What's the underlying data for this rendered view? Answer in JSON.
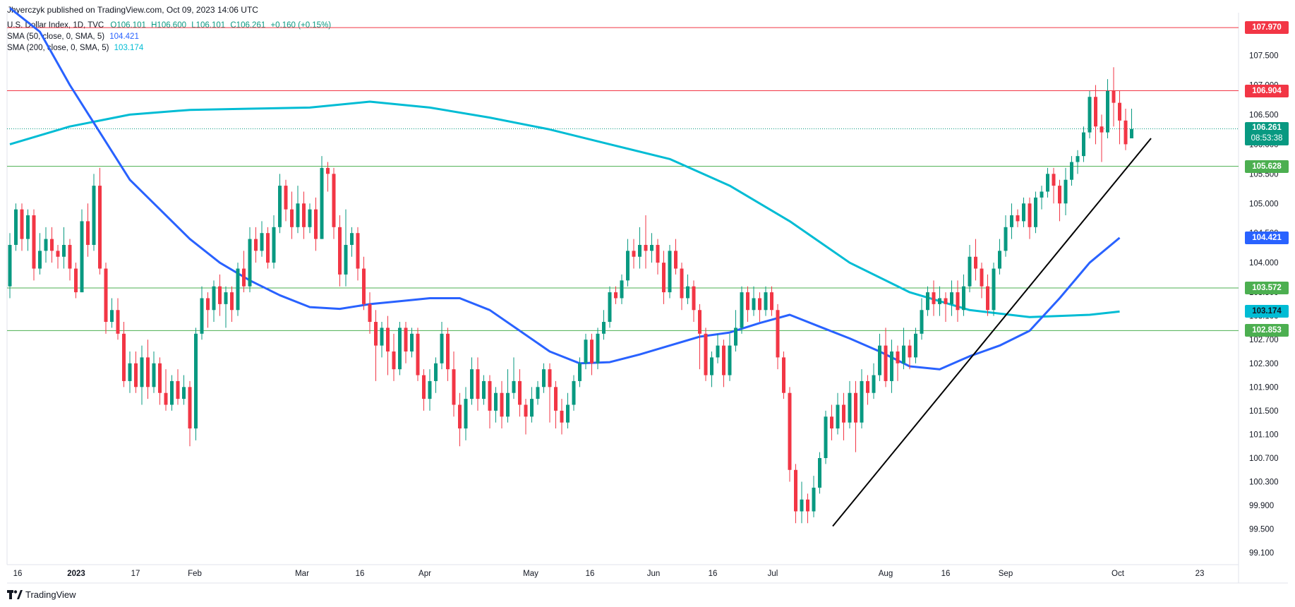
{
  "publisher": "Jhyerczyk published on TradingView.com, Oct 09, 2023 14:06 UTC",
  "symbol": "U.S. Dollar Index, 1D, TVC",
  "ohlc": {
    "o": "O106.101",
    "h": "H106.600",
    "l": "L106.101",
    "c": "C106.261",
    "chg": "+0.160 (+0.15%)"
  },
  "sma50": {
    "label": "SMA (50, close, 0, SMA, 5)",
    "value": "104.421",
    "color": "#2962ff"
  },
  "sma200": {
    "label": "SMA (200, close, 0, SMA, 5)",
    "value": "103.174",
    "color": "#00bcd4"
  },
  "price_label": {
    "value": "106.261",
    "countdown": "08:53:38"
  },
  "footer": "TradingView",
  "colors": {
    "up": "#089981",
    "down": "#f23645",
    "red_line": "#f23645",
    "green_line": "#4caf50",
    "trend": "#000000"
  },
  "chart_data": {
    "type": "candlestick",
    "ylim": [
      98.9,
      108.15
    ],
    "y_ticks": [
      107.5,
      107.0,
      106.5,
      106.0,
      105.5,
      105.0,
      104.5,
      104.0,
      103.5,
      103.1,
      102.7,
      102.3,
      101.9,
      101.5,
      101.1,
      100.7,
      100.3,
      99.9,
      99.5,
      99.1
    ],
    "y_tick_labels": [
      "107.500",
      "107.000",
      "106.500",
      "106.000",
      "105.500",
      "105.000",
      "104.500",
      "104.000",
      "103.500",
      "103.100",
      "102.700",
      "102.300",
      "101.900",
      "101.500",
      "101.100",
      "100.700",
      "100.300",
      "99.900",
      "99.500",
      "99.100"
    ],
    "x_ticks": [
      "16",
      "2023",
      "17",
      "Feb",
      "Mar",
      "16",
      "Apr",
      "May",
      "16",
      "Jun",
      "16",
      "Jul",
      "Aug",
      "16",
      "Sep",
      "Oct",
      "23"
    ],
    "horizontal_levels": [
      {
        "value": 107.97,
        "label": "107.970",
        "color": "red"
      },
      {
        "value": 106.904,
        "label": "106.904",
        "color": "red"
      },
      {
        "value": 105.628,
        "label": "105.628",
        "color": "green"
      },
      {
        "value": 103.572,
        "label": "103.572",
        "color": "green"
      },
      {
        "value": 102.853,
        "label": "102.853",
        "color": "green"
      }
    ],
    "trendline": {
      "from": {
        "date": "2023-07-18",
        "value": 99.55
      },
      "to": {
        "date": "2023-10-09",
        "value": 106.1
      }
    },
    "sma50_points": [
      [
        0,
        108.3
      ],
      [
        5,
        107.9
      ],
      [
        10,
        107.0
      ],
      [
        15,
        106.2
      ],
      [
        20,
        105.4
      ],
      [
        25,
        104.9
      ],
      [
        30,
        104.4
      ],
      [
        35,
        104.0
      ],
      [
        40,
        103.7
      ],
      [
        45,
        103.45
      ],
      [
        50,
        103.25
      ],
      [
        55,
        103.22
      ],
      [
        60,
        103.3
      ],
      [
        65,
        103.35
      ],
      [
        70,
        103.4
      ],
      [
        75,
        103.4
      ],
      [
        80,
        103.2
      ],
      [
        85,
        102.85
      ],
      [
        90,
        102.5
      ],
      [
        95,
        102.3
      ],
      [
        100,
        102.32
      ],
      [
        105,
        102.45
      ],
      [
        110,
        102.6
      ],
      [
        115,
        102.75
      ],
      [
        120,
        102.82
      ],
      [
        125,
        102.98
      ],
      [
        130,
        103.12
      ],
      [
        135,
        102.92
      ],
      [
        140,
        102.72
      ],
      [
        145,
        102.5
      ],
      [
        150,
        102.25
      ],
      [
        155,
        102.2
      ],
      [
        160,
        102.42
      ],
      [
        165,
        102.6
      ],
      [
        170,
        102.85
      ],
      [
        175,
        103.4
      ],
      [
        180,
        104.0
      ],
      [
        185,
        104.42
      ]
    ],
    "sma200_points": [
      [
        0,
        106.0
      ],
      [
        10,
        106.3
      ],
      [
        20,
        106.5
      ],
      [
        30,
        106.58
      ],
      [
        40,
        106.6
      ],
      [
        50,
        106.62
      ],
      [
        60,
        106.72
      ],
      [
        70,
        106.62
      ],
      [
        80,
        106.45
      ],
      [
        90,
        106.25
      ],
      [
        100,
        106.0
      ],
      [
        110,
        105.75
      ],
      [
        120,
        105.3
      ],
      [
        130,
        104.7
      ],
      [
        140,
        104.0
      ],
      [
        150,
        103.5
      ],
      [
        160,
        103.2
      ],
      [
        170,
        103.08
      ],
      [
        180,
        103.12
      ],
      [
        185,
        103.174
      ]
    ],
    "candles": [
      [
        103.6,
        104.3,
        103.4,
        104.5
      ],
      [
        104.3,
        104.9,
        104.2,
        105.0
      ],
      [
        104.9,
        104.4,
        104.2,
        105.0
      ],
      [
        104.4,
        104.8,
        104.2,
        104.9
      ],
      [
        104.8,
        103.9,
        103.7,
        104.9
      ],
      [
        103.9,
        104.2,
        103.8,
        104.5
      ],
      [
        104.2,
        104.4,
        104.0,
        104.6
      ],
      [
        104.4,
        104.2,
        104.0,
        104.6
      ],
      [
        104.2,
        104.1,
        103.9,
        104.3
      ],
      [
        104.1,
        104.3,
        103.9,
        104.6
      ],
      [
        104.3,
        103.9,
        103.7,
        104.4
      ],
      [
        103.9,
        103.5,
        103.4,
        104.0
      ],
      [
        103.5,
        104.7,
        103.5,
        104.9
      ],
      [
        104.7,
        104.3,
        104.1,
        105.0
      ],
      [
        104.3,
        105.3,
        104.2,
        105.5
      ],
      [
        105.3,
        103.9,
        103.8,
        105.6
      ],
      [
        103.9,
        103.0,
        102.8,
        104.0
      ],
      [
        103.0,
        103.2,
        102.9,
        103.4
      ],
      [
        103.2,
        102.8,
        102.7,
        103.4
      ],
      [
        102.8,
        102.0,
        101.9,
        103.0
      ],
      [
        102.0,
        102.3,
        101.8,
        102.5
      ],
      [
        102.3,
        101.9,
        101.8,
        102.5
      ],
      [
        101.9,
        102.4,
        101.6,
        102.6
      ],
      [
        102.4,
        101.9,
        101.7,
        102.7
      ],
      [
        101.9,
        102.3,
        101.8,
        102.5
      ],
      [
        102.3,
        101.8,
        101.6,
        102.4
      ],
      [
        101.8,
        101.6,
        101.5,
        102.2
      ],
      [
        101.6,
        102.0,
        101.5,
        102.1
      ],
      [
        102.0,
        101.7,
        101.6,
        102.2
      ],
      [
        101.7,
        101.9,
        101.6,
        102.1
      ],
      [
        101.9,
        101.2,
        100.9,
        102.0
      ],
      [
        101.2,
        102.8,
        101.0,
        102.9
      ],
      [
        102.8,
        103.4,
        102.7,
        103.6
      ],
      [
        103.4,
        103.2,
        102.9,
        103.5
      ],
      [
        103.2,
        103.6,
        103.0,
        103.7
      ],
      [
        103.6,
        103.3,
        103.1,
        103.8
      ],
      [
        103.3,
        103.5,
        102.9,
        103.6
      ],
      [
        103.5,
        103.2,
        103.0,
        103.6
      ],
      [
        103.2,
        103.9,
        103.1,
        104.0
      ],
      [
        103.9,
        103.6,
        103.5,
        104.2
      ],
      [
        103.6,
        104.4,
        103.5,
        104.6
      ],
      [
        104.4,
        104.2,
        104.0,
        104.6
      ],
      [
        104.2,
        104.5,
        104.1,
        104.7
      ],
      [
        104.5,
        104.0,
        103.9,
        104.6
      ],
      [
        104.0,
        104.6,
        103.9,
        104.8
      ],
      [
        104.6,
        105.3,
        104.5,
        105.5
      ],
      [
        105.3,
        104.9,
        104.7,
        105.4
      ],
      [
        104.9,
        104.6,
        104.4,
        105.2
      ],
      [
        104.6,
        105.0,
        104.5,
        105.3
      ],
      [
        105.0,
        104.6,
        104.4,
        105.2
      ],
      [
        104.6,
        104.9,
        104.5,
        105.0
      ],
      [
        104.9,
        104.4,
        104.2,
        105.1
      ],
      [
        104.4,
        105.6,
        104.4,
        105.8
      ],
      [
        105.6,
        105.5,
        105.2,
        105.7
      ],
      [
        105.5,
        104.6,
        104.4,
        105.6
      ],
      [
        104.6,
        103.8,
        103.6,
        104.8
      ],
      [
        103.8,
        104.3,
        103.6,
        104.9
      ],
      [
        104.3,
        104.5,
        104.1,
        104.6
      ],
      [
        104.5,
        103.9,
        103.7,
        104.6
      ],
      [
        103.9,
        103.3,
        103.2,
        104.1
      ],
      [
        103.3,
        103.0,
        102.8,
        103.5
      ],
      [
        103.0,
        102.6,
        102.0,
        103.2
      ],
      [
        102.6,
        102.9,
        102.4,
        103.0
      ],
      [
        102.9,
        102.5,
        102.1,
        103.1
      ],
      [
        102.5,
        102.2,
        102.0,
        102.8
      ],
      [
        102.2,
        102.9,
        102.1,
        103.0
      ],
      [
        102.9,
        102.5,
        102.3,
        103.0
      ],
      [
        102.5,
        102.8,
        102.4,
        102.9
      ],
      [
        102.8,
        102.1,
        102.0,
        102.9
      ],
      [
        102.1,
        101.7,
        101.5,
        102.2
      ],
      [
        101.7,
        102.0,
        101.5,
        102.2
      ],
      [
        102.0,
        102.3,
        101.8,
        102.4
      ],
      [
        102.3,
        102.8,
        102.2,
        103.0
      ],
      [
        102.8,
        102.2,
        102.0,
        102.9
      ],
      [
        102.2,
        101.6,
        101.4,
        102.5
      ],
      [
        101.6,
        101.2,
        100.9,
        101.8
      ],
      [
        101.2,
        101.7,
        101.0,
        101.9
      ],
      [
        101.7,
        102.2,
        101.6,
        102.4
      ],
      [
        102.2,
        101.7,
        101.5,
        102.4
      ],
      [
        101.7,
        102.0,
        101.6,
        102.1
      ],
      [
        102.0,
        101.5,
        101.2,
        102.1
      ],
      [
        101.5,
        101.8,
        101.3,
        101.9
      ],
      [
        101.8,
        101.4,
        101.2,
        102.0
      ],
      [
        101.4,
        101.8,
        101.3,
        102.2
      ],
      [
        101.8,
        102.0,
        101.7,
        102.4
      ],
      [
        102.0,
        101.6,
        101.4,
        102.2
      ],
      [
        101.6,
        101.4,
        101.1,
        101.7
      ],
      [
        101.4,
        101.7,
        101.3,
        101.9
      ],
      [
        101.7,
        101.9,
        101.6,
        102.0
      ],
      [
        101.9,
        102.2,
        101.8,
        102.3
      ],
      [
        102.2,
        101.9,
        101.3,
        102.3
      ],
      [
        101.9,
        101.5,
        101.2,
        102.0
      ],
      [
        101.5,
        101.3,
        101.1,
        101.7
      ],
      [
        101.3,
        101.6,
        101.2,
        101.8
      ],
      [
        101.6,
        102.0,
        101.5,
        102.1
      ],
      [
        102.0,
        102.3,
        101.9,
        102.4
      ],
      [
        102.3,
        102.7,
        102.2,
        102.8
      ],
      [
        102.7,
        102.3,
        102.1,
        102.8
      ],
      [
        102.3,
        102.8,
        102.2,
        102.9
      ],
      [
        102.8,
        103.0,
        102.7,
        103.2
      ],
      [
        103.0,
        103.5,
        102.9,
        103.6
      ],
      [
        103.5,
        103.4,
        103.3,
        103.6
      ],
      [
        103.4,
        103.7,
        103.3,
        103.8
      ],
      [
        103.7,
        104.2,
        103.6,
        104.4
      ],
      [
        104.2,
        104.1,
        103.9,
        104.4
      ],
      [
        104.1,
        104.3,
        103.9,
        104.6
      ],
      [
        104.3,
        104.2,
        103.9,
        104.8
      ],
      [
        104.2,
        104.3,
        104.0,
        104.5
      ],
      [
        104.3,
        104.0,
        103.8,
        104.4
      ],
      [
        104.0,
        103.5,
        103.3,
        104.2
      ],
      [
        103.5,
        104.2,
        103.4,
        104.3
      ],
      [
        104.2,
        103.9,
        103.8,
        104.4
      ],
      [
        103.9,
        103.4,
        103.2,
        104.0
      ],
      [
        103.4,
        103.6,
        103.3,
        103.8
      ],
      [
        103.6,
        103.2,
        103.0,
        103.7
      ],
      [
        103.2,
        102.8,
        102.2,
        103.3
      ],
      [
        102.8,
        102.1,
        102.0,
        102.9
      ],
      [
        102.1,
        102.4,
        101.9,
        102.5
      ],
      [
        102.4,
        102.6,
        102.3,
        102.8
      ],
      [
        102.6,
        102.1,
        101.9,
        102.7
      ],
      [
        102.1,
        102.6,
        102.0,
        102.8
      ],
      [
        102.6,
        102.9,
        102.5,
        103.2
      ],
      [
        102.9,
        103.5,
        102.8,
        103.6
      ],
      [
        103.5,
        103.2,
        103.0,
        103.6
      ],
      [
        103.2,
        103.4,
        103.1,
        103.6
      ],
      [
        103.4,
        103.2,
        103.0,
        103.5
      ],
      [
        103.2,
        103.5,
        103.1,
        103.6
      ],
      [
        103.5,
        103.2,
        103.1,
        103.6
      ],
      [
        103.2,
        102.4,
        102.2,
        103.3
      ],
      [
        102.4,
        101.8,
        101.7,
        102.5
      ],
      [
        101.8,
        100.5,
        100.3,
        101.9
      ],
      [
        100.5,
        99.8,
        99.6,
        100.6
      ],
      [
        99.8,
        100.0,
        99.6,
        100.3
      ],
      [
        100.0,
        99.8,
        99.6,
        100.1
      ],
      [
        99.8,
        100.2,
        99.7,
        100.4
      ],
      [
        100.2,
        100.7,
        100.1,
        100.8
      ],
      [
        100.7,
        101.4,
        100.6,
        101.5
      ],
      [
        101.4,
        101.2,
        101.0,
        101.6
      ],
      [
        101.2,
        101.6,
        101.1,
        101.8
      ],
      [
        101.6,
        101.3,
        101.0,
        101.8
      ],
      [
        101.3,
        101.8,
        101.2,
        102.0
      ],
      [
        101.8,
        101.3,
        100.8,
        102.0
      ],
      [
        101.3,
        102.0,
        101.2,
        102.2
      ],
      [
        102.0,
        101.8,
        101.6,
        102.1
      ],
      [
        101.8,
        102.1,
        101.7,
        102.3
      ],
      [
        102.1,
        102.6,
        102.0,
        102.8
      ],
      [
        102.6,
        102.0,
        101.9,
        102.9
      ],
      [
        102.0,
        102.5,
        101.8,
        102.7
      ],
      [
        102.5,
        102.3,
        102.0,
        102.6
      ],
      [
        102.3,
        102.6,
        102.2,
        102.9
      ],
      [
        102.6,
        102.4,
        102.2,
        102.7
      ],
      [
        102.4,
        102.8,
        102.3,
        102.9
      ],
      [
        102.8,
        103.2,
        102.7,
        103.4
      ],
      [
        103.2,
        103.5,
        103.1,
        103.6
      ],
      [
        103.5,
        103.3,
        103.1,
        103.7
      ],
      [
        103.3,
        103.4,
        103.1,
        103.6
      ],
      [
        103.4,
        103.3,
        103.0,
        103.5
      ],
      [
        103.3,
        103.5,
        103.1,
        103.7
      ],
      [
        103.5,
        103.2,
        103.0,
        103.7
      ],
      [
        103.2,
        103.6,
        103.1,
        103.8
      ],
      [
        103.6,
        104.1,
        103.5,
        104.3
      ],
      [
        104.1,
        103.9,
        103.7,
        104.4
      ],
      [
        103.9,
        103.6,
        103.4,
        104.0
      ],
      [
        103.6,
        103.2,
        103.1,
        103.8
      ],
      [
        103.2,
        103.9,
        103.1,
        104.0
      ],
      [
        103.9,
        104.2,
        103.8,
        104.4
      ],
      [
        104.2,
        104.6,
        104.1,
        104.8
      ],
      [
        104.6,
        104.8,
        104.4,
        105.0
      ],
      [
        104.8,
        104.7,
        104.6,
        104.9
      ],
      [
        104.7,
        105.0,
        104.6,
        105.1
      ],
      [
        105.0,
        104.6,
        104.4,
        105.1
      ],
      [
        104.6,
        105.1,
        104.5,
        105.2
      ],
      [
        105.1,
        105.2,
        104.9,
        105.3
      ],
      [
        105.2,
        105.5,
        105.1,
        105.6
      ],
      [
        105.5,
        105.3,
        105.0,
        105.6
      ],
      [
        105.3,
        105.0,
        104.7,
        105.4
      ],
      [
        105.0,
        105.4,
        104.8,
        105.6
      ],
      [
        105.4,
        105.7,
        105.3,
        105.8
      ],
      [
        105.7,
        105.8,
        105.5,
        105.9
      ],
      [
        105.8,
        106.2,
        105.7,
        106.3
      ],
      [
        106.2,
        106.8,
        106.1,
        106.9
      ],
      [
        106.8,
        106.3,
        106.0,
        107.0
      ],
      [
        106.3,
        106.2,
        105.7,
        106.5
      ],
      [
        106.2,
        106.9,
        106.1,
        107.1
      ],
      [
        106.9,
        106.7,
        106.3,
        107.3
      ],
      [
        106.7,
        106.4,
        106.0,
        106.9
      ],
      [
        106.4,
        106.0,
        105.9,
        106.6
      ],
      [
        106.1,
        106.26,
        106.1,
        106.6
      ]
    ]
  }
}
